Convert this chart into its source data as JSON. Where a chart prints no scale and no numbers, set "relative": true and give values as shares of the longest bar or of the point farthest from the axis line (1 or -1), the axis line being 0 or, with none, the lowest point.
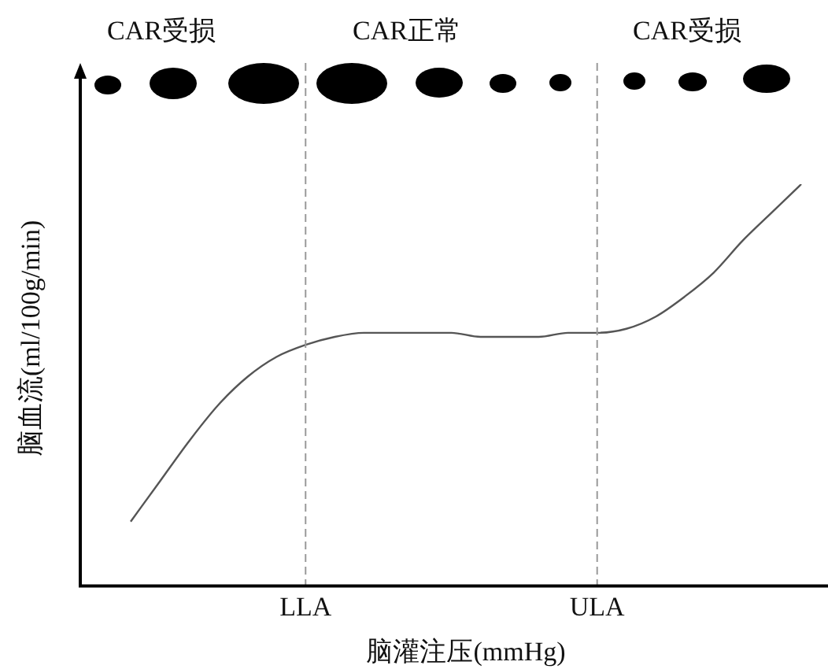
{
  "chart_data": {
    "type": "line",
    "relative": true,
    "xlabel": "脑灌注压(mmHg)",
    "ylabel": "脑血流(ml/100g/min)",
    "categories": [
      null,
      null,
      null,
      null,
      null,
      null,
      "LLA",
      null,
      null,
      null,
      null,
      null,
      null,
      null,
      null,
      null,
      "ULA",
      null,
      null,
      null,
      null,
      null,
      null,
      null
    ],
    "series": [
      {
        "color": "#555555",
        "values": [
          0.16,
          0.26,
          0.36,
          0.45,
          0.52,
          0.57,
          0.6,
          0.62,
          0.63,
          0.63,
          0.63,
          0.63,
          0.62,
          0.62,
          0.62,
          0.63,
          0.63,
          0.64,
          0.67,
          0.72,
          0.78,
          0.86,
          0.93,
          1
        ]
      }
    ],
    "ref_lines": [
      {
        "axis": "x",
        "value": "LLA",
        "color": "#999999",
        "line_style": "dashed"
      },
      {
        "axis": "x",
        "value": "ULA",
        "color": "#999999",
        "line_style": "dashed"
      }
    ],
    "annotations": [
      "CAR受损",
      "CAR正常",
      "CAR受损"
    ],
    "grid": false,
    "legend": false,
    "marker": "none",
    "line_style": "solid"
  }
}
